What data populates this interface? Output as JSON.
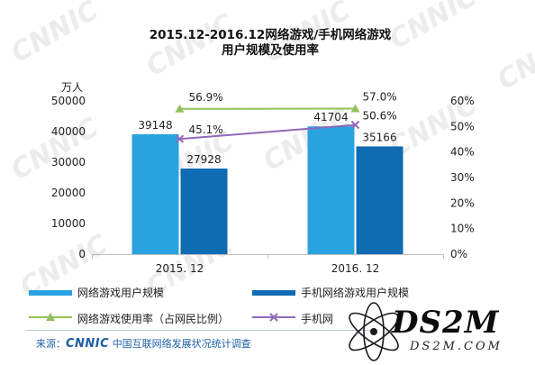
{
  "title": {
    "line1": "2015.12-2016.12网络游戏/手机网络游戏",
    "line2": "用户规模及使用率"
  },
  "watermark": "CNNIC",
  "colors": {
    "bar_pc": "#29a3e0",
    "bar_mobile": "#0f6bb2",
    "line_pc": "#92c05a",
    "line_mobile": "#8e6ab8"
  },
  "chart_data": {
    "type": "bar",
    "categories": [
      "2015. 12",
      "2016. 12"
    ],
    "y_left": {
      "unit_label": "万人",
      "ylim": [
        0,
        50000
      ],
      "ticks": [
        "0",
        "10000",
        "20000",
        "30000",
        "40000",
        "50000"
      ]
    },
    "y_right": {
      "ylim": [
        0,
        60
      ],
      "ticks": [
        "0%",
        "10%",
        "20%",
        "30%",
        "40%",
        "50%",
        "60%"
      ]
    },
    "bar_series": [
      {
        "name": "网络游戏用户规模",
        "values": [
          39148,
          41704
        ],
        "labels": [
          "39148",
          "41704"
        ]
      },
      {
        "name": "手机网络游戏用户规模",
        "values": [
          27928,
          35166
        ],
        "labels": [
          "27928",
          "35166"
        ]
      }
    ],
    "line_series": [
      {
        "name": "网络游戏使用率（占网民比例）",
        "values": [
          56.9,
          57.0
        ],
        "labels": [
          "56.9%",
          "57.0%"
        ],
        "marker": "triangle"
      },
      {
        "name": "手机网",
        "values": [
          45.1,
          50.6
        ],
        "labels": [
          "45.1%",
          "50.6%"
        ],
        "marker": "x"
      }
    ],
    "grid": false,
    "legend_position": "bottom"
  },
  "legend": {
    "item1": "网络游戏用户规模",
    "item2": "手机网络游戏用户规模",
    "item3": "网络游戏使用率（占网民比例）",
    "item4": "手机网"
  },
  "footer": {
    "source_prefix": "来源：",
    "brand": "CNNIC",
    "source_text": "中国互联网络发展状况统计调查"
  },
  "logo": {
    "text": "DS2M",
    "sub": "DS2M.COM"
  }
}
